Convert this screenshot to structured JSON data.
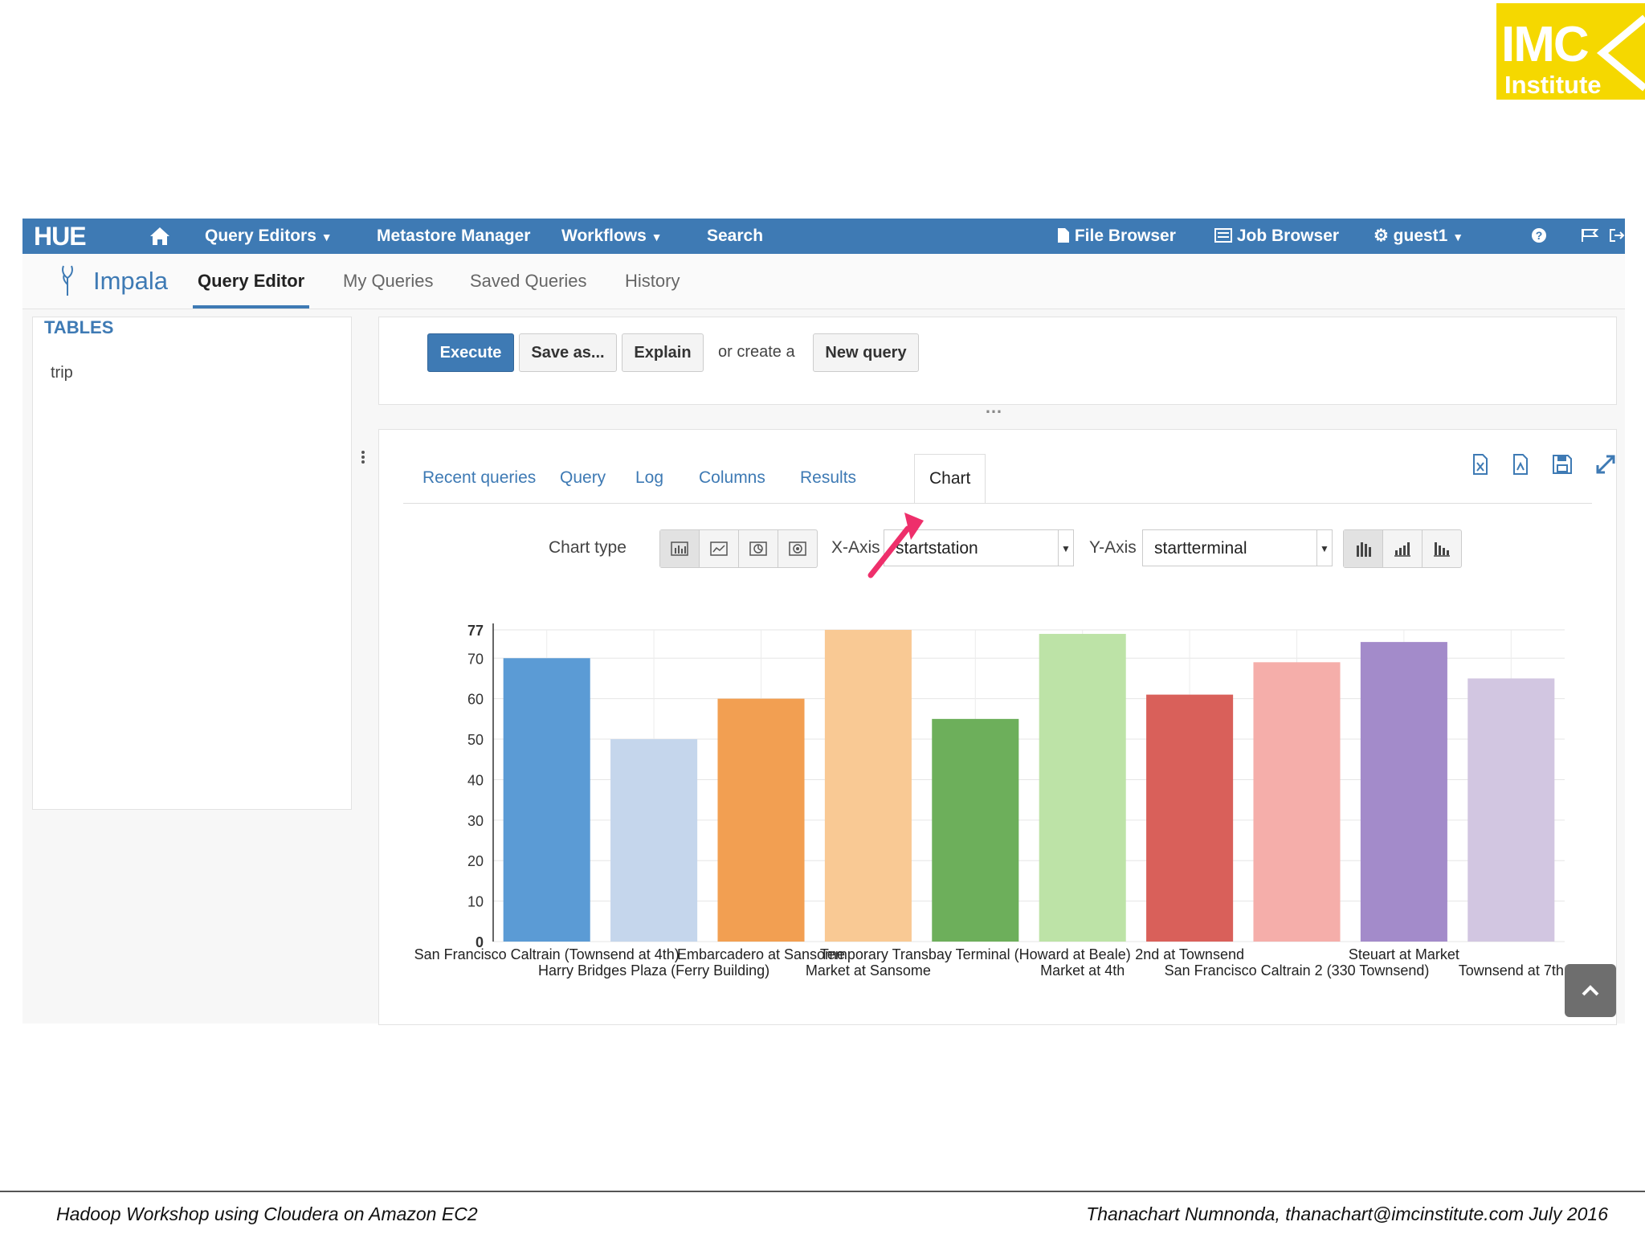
{
  "logo": {
    "line1": "IMC",
    "line2": "Institute"
  },
  "topnav": {
    "brand": "HUE",
    "items": [
      {
        "label": "Query Editors",
        "caret": true
      },
      {
        "label": "Metastore Manager"
      },
      {
        "label": "Workflows",
        "caret": true
      },
      {
        "label": "Search"
      }
    ],
    "right_items": [
      {
        "label": "File Browser"
      },
      {
        "label": "Job Browser"
      },
      {
        "label": "guest1",
        "caret": true
      }
    ]
  },
  "subnav": {
    "app_name": "Impala",
    "items": [
      "Query Editor",
      "My Queries",
      "Saved Queries",
      "History"
    ],
    "active": "Query Editor"
  },
  "sidebar": {
    "title": "TABLES",
    "tables": [
      "trip"
    ]
  },
  "editor": {
    "execute": "Execute",
    "save_as": "Save as...",
    "explain": "Explain",
    "or_create": "or create a",
    "new_query": "New query"
  },
  "results": {
    "tabs": [
      "Recent queries",
      "Query",
      "Log",
      "Columns",
      "Results",
      "Chart"
    ],
    "active_tab": "Chart",
    "chart_type_label": "Chart type",
    "x_axis_label": "X-Axis",
    "x_axis_value": "startstation",
    "y_axis_label": "Y-Axis",
    "y_axis_value": "startterminal"
  },
  "chart_data": {
    "type": "bar",
    "title": "",
    "xlabel": "",
    "ylabel": "",
    "ylim": [
      0,
      77
    ],
    "yticks": [
      0,
      10,
      20,
      30,
      40,
      50,
      60,
      70,
      77
    ],
    "categories": [
      "San Francisco Caltrain (Townsend at 4th)",
      "Harry Bridges Plaza (Ferry Building)",
      "Embarcadero at Sansome",
      "Market at Sansome",
      "Temporary Transbay Terminal (Howard at Beale)",
      "Market at 4th",
      "2nd at Townsend",
      "San Francisco Caltrain 2 (330 Townsend)",
      "Steuart at Market",
      "Townsend at 7th"
    ],
    "values": [
      70,
      50,
      60,
      77,
      55,
      76,
      61,
      69,
      74,
      65
    ],
    "colors": [
      "#5b9bd5",
      "#c5d6ec",
      "#f29f52",
      "#f9c994",
      "#6daf5b",
      "#bde3a7",
      "#d9605a",
      "#f5aeaa",
      "#a38bca",
      "#d2c6e1"
    ],
    "label_rows": [
      0,
      1,
      0,
      1,
      0,
      1,
      0,
      1,
      0,
      1
    ]
  },
  "footer": {
    "left": "Hadoop Workshop using Cloudera on Amazon EC2",
    "right": "Thanachart Numnonda,  thanachart@imcinstitute.com  July 2016"
  }
}
